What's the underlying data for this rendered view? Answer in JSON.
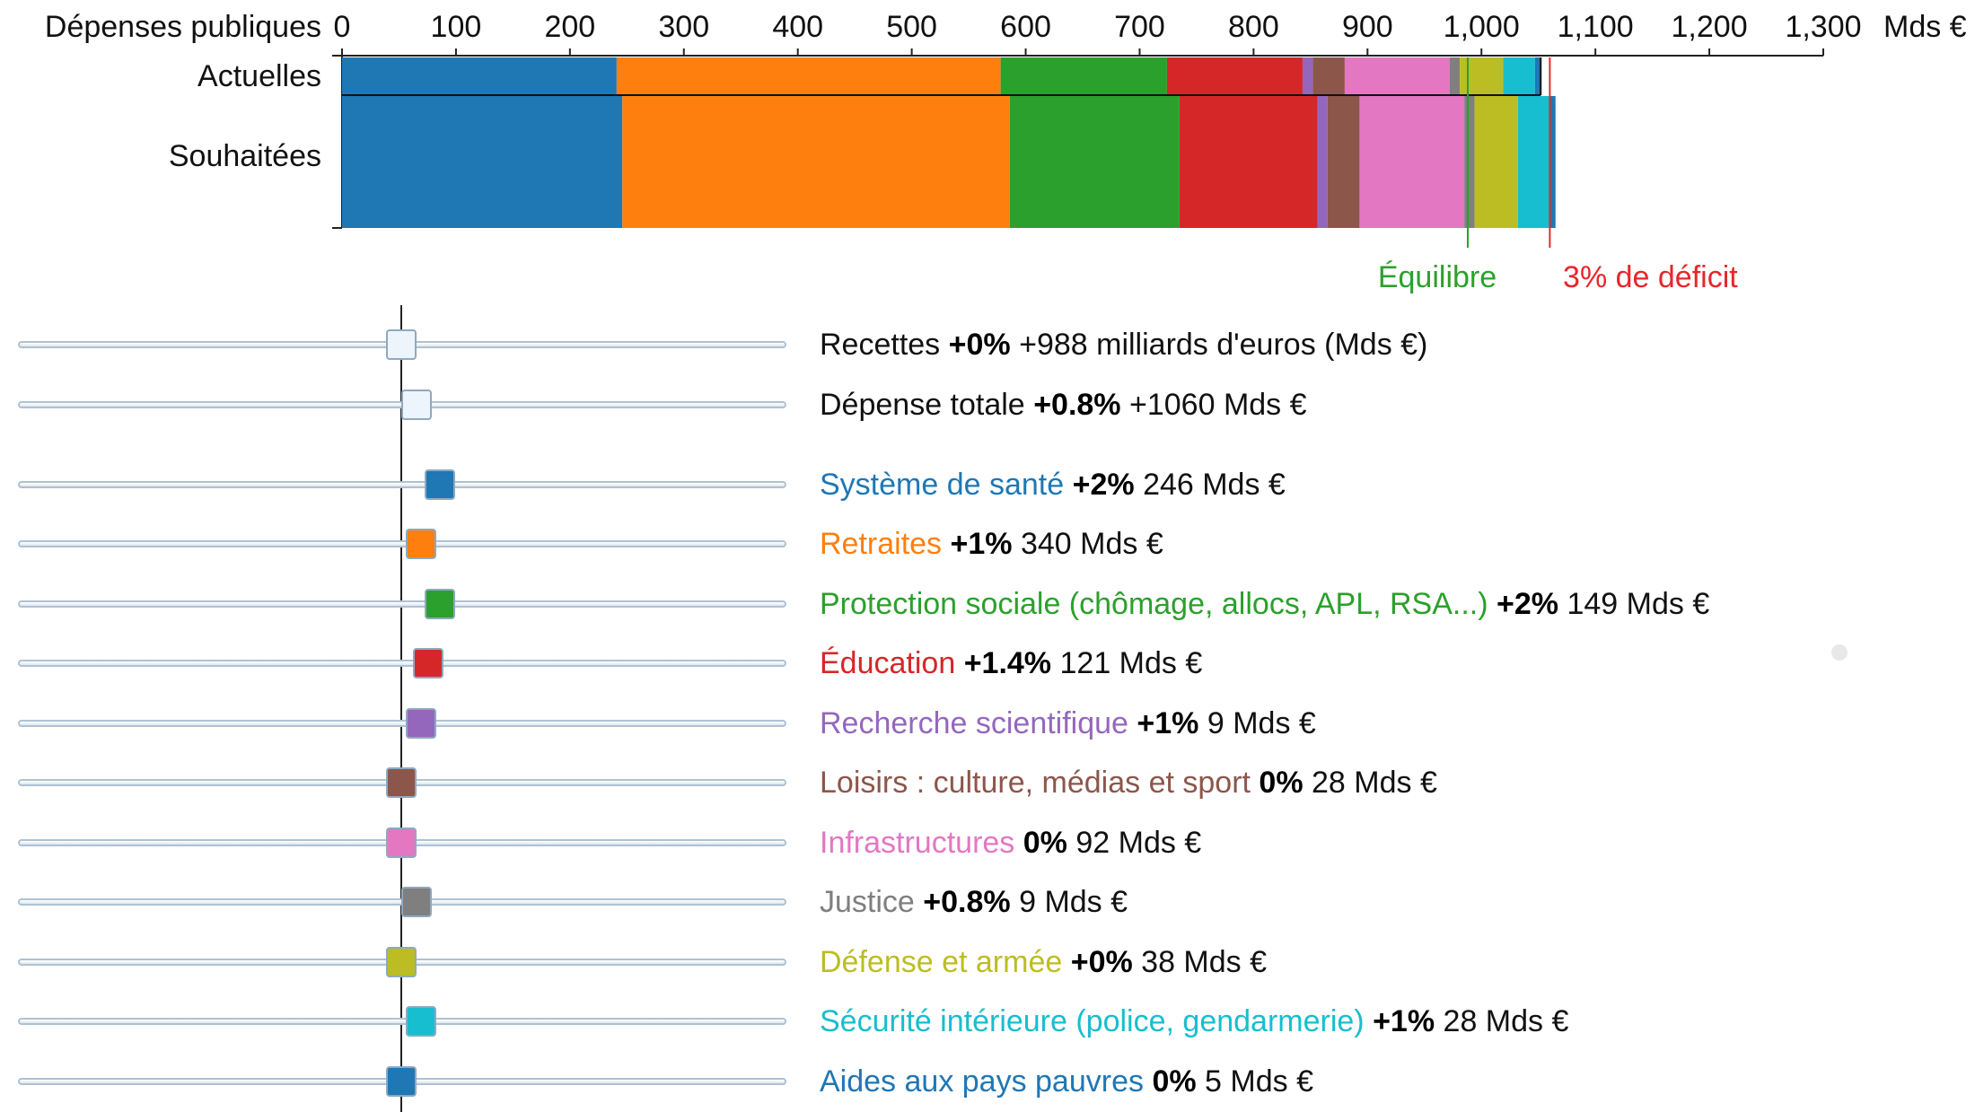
{
  "chart_data": {
    "type": "bar",
    "orientation": "horizontal",
    "stacked": true,
    "title": "Dépenses publiques",
    "unit": "Mds €",
    "xlim": [
      0,
      1300
    ],
    "xticks": [
      0,
      100,
      200,
      300,
      400,
      500,
      600,
      700,
      800,
      900,
      1000,
      1100,
      1200,
      1300
    ],
    "xtick_labels": [
      "0",
      "100",
      "200",
      "300",
      "400",
      "500",
      "600",
      "700",
      "800",
      "900",
      "1,000",
      "1,100",
      "1,200",
      "1,300"
    ],
    "categories": [
      "Actuelles",
      "Souhaitées"
    ],
    "series": [
      {
        "key": "sante",
        "color": "#1f77b4",
        "values": [
          241,
          246
        ]
      },
      {
        "key": "retraites",
        "color": "#ff7f0e",
        "values": [
          337,
          340
        ]
      },
      {
        "key": "protection",
        "color": "#2ca02c",
        "values": [
          146,
          149
        ]
      },
      {
        "key": "education",
        "color": "#d62728",
        "values": [
          119,
          121
        ]
      },
      {
        "key": "recherche",
        "color": "#9467bd",
        "values": [
          9,
          9
        ]
      },
      {
        "key": "loisirs",
        "color": "#8c564b",
        "values": [
          28,
          28
        ]
      },
      {
        "key": "infra",
        "color": "#e377c2",
        "values": [
          92,
          92
        ]
      },
      {
        "key": "justice",
        "color": "#7f7f7f",
        "values": [
          9,
          9
        ]
      },
      {
        "key": "defense",
        "color": "#bcbd22",
        "values": [
          38,
          38
        ]
      },
      {
        "key": "securite",
        "color": "#17becf",
        "values": [
          28,
          28
        ]
      },
      {
        "key": "aides",
        "color": "#1f77b4",
        "values": [
          5,
          5
        ]
      }
    ],
    "reference_lines": [
      {
        "label": "Équilibre",
        "value": 988,
        "color": "#2ca02c"
      },
      {
        "label": "3% de déficit",
        "value": 1060,
        "color": "#e8262a"
      }
    ]
  },
  "sliders": [
    {
      "name": "Recettes",
      "pct": "+0%",
      "value": "+988 milliards d'euros (Mds €)",
      "change": 0,
      "thumb_color": "#edf4fc",
      "label_color": "#111111"
    },
    {
      "name": "Dépense totale",
      "pct": "+0.8%",
      "value": "+1060 Mds €",
      "change": 0.8,
      "thumb_color": "#edf4fc",
      "label_color": "#111111"
    },
    {
      "name": "Système de santé",
      "pct": "+2%",
      "value": "246 Mds €",
      "change": 2,
      "thumb_color": "#1f77b4",
      "label_color": "#1f77b4"
    },
    {
      "name": "Retraites",
      "pct": "+1%",
      "value": "340 Mds €",
      "change": 1,
      "thumb_color": "#ff7f0e",
      "label_color": "#ff7f0e"
    },
    {
      "name": "Protection sociale (chômage, allocs, APL, RSA...)",
      "pct": "+2%",
      "value": "149 Mds €",
      "change": 2,
      "thumb_color": "#2ca02c",
      "label_color": "#2ca02c"
    },
    {
      "name": "Éducation",
      "pct": "+1.4%",
      "value": "121 Mds €",
      "change": 1.4,
      "thumb_color": "#d62728",
      "label_color": "#d62728"
    },
    {
      "name": "Recherche scientifique",
      "pct": "+1%",
      "value": "9 Mds €",
      "change": 1,
      "thumb_color": "#9467bd",
      "label_color": "#9467bd"
    },
    {
      "name": "Loisirs : culture, médias et sport",
      "pct": "0%",
      "value": "28 Mds €",
      "change": 0,
      "thumb_color": "#8c564b",
      "label_color": "#8c564b"
    },
    {
      "name": "Infrastructures",
      "pct": "0%",
      "value": "92 Mds €",
      "change": 0,
      "thumb_color": "#e377c2",
      "label_color": "#e377c2"
    },
    {
      "name": "Justice",
      "pct": "+0.8%",
      "value": "9 Mds €",
      "change": 0.8,
      "thumb_color": "#7f7f7f",
      "label_color": "#7f7f7f"
    },
    {
      "name": "Défense et armée",
      "pct": "+0%",
      "value": "38 Mds €",
      "change": 0,
      "thumb_color": "#bcbd22",
      "label_color": "#bcbd22"
    },
    {
      "name": "Sécurité intérieure (police, gendarmerie)",
      "pct": "+1%",
      "value": "28 Mds €",
      "change": 1,
      "thumb_color": "#17becf",
      "label_color": "#17becf"
    },
    {
      "name": "Aides aux pays pauvres",
      "pct": "0%",
      "value": "5 Mds €",
      "change": 0,
      "thumb_color": "#1f77b4",
      "label_color": "#1f77b4"
    }
  ]
}
